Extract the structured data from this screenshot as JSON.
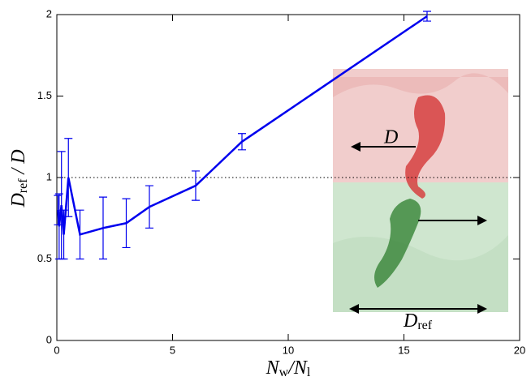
{
  "chart_data": {
    "type": "line",
    "xlabel": [
      "N",
      "w",
      "/N",
      "l"
    ],
    "ylabel": [
      "D",
      "ref",
      " / D"
    ],
    "x": [
      0.05,
      0.1,
      0.2,
      0.3,
      0.5,
      1,
      2,
      3,
      4,
      6,
      8,
      16
    ],
    "series": [
      {
        "color": "#0000ee",
        "values": [
          0.8,
          0.7,
          0.83,
          0.65,
          1.0,
          0.65,
          0.69,
          0.72,
          0.82,
          0.95,
          1.22,
          1.99
        ],
        "errors": [
          0.09,
          0.2,
          0.33,
          0.15,
          0.24,
          0.15,
          0.19,
          0.15,
          0.13,
          0.09,
          0.05,
          0.03
        ]
      }
    ],
    "reference_line": 1,
    "xlim": [
      0,
      20
    ],
    "xticks": [
      0,
      5,
      10,
      15,
      20
    ],
    "ylim": [
      0,
      2
    ],
    "yticks": [
      0,
      0.5,
      1,
      1.5,
      2
    ],
    "inset": {
      "arrow_label": "D",
      "width_label": [
        "D",
        "ref"
      ]
    }
  }
}
